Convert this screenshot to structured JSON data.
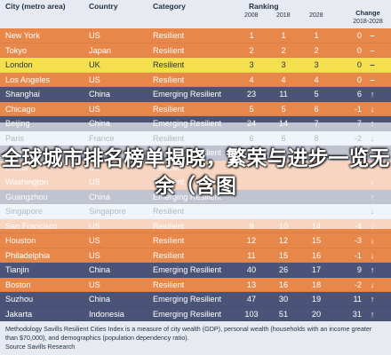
{
  "header": {
    "city": "City (metro area)",
    "country": "Country",
    "category": "Category",
    "ranking": "Ranking",
    "y2008": "2008",
    "y2018": "2018",
    "y2028": "2028",
    "change_line1": "Change",
    "change_line2": "2018-2028"
  },
  "rows": [
    {
      "city": "New York",
      "country": "US",
      "category": "Resilient",
      "r2008": "1",
      "r2018": "1",
      "r2028": "1",
      "change": "0",
      "arrow": "–",
      "style": "orange"
    },
    {
      "city": "Tokyo",
      "country": "Japan",
      "category": "Resilient",
      "r2008": "2",
      "r2018": "2",
      "r2028": "2",
      "change": "0",
      "arrow": "–",
      "style": "orange"
    },
    {
      "city": "London",
      "country": "UK",
      "category": "Resilient",
      "r2008": "3",
      "r2018": "3",
      "r2028": "3",
      "change": "0",
      "arrow": "–",
      "style": "yellow"
    },
    {
      "city": "Los Angeles",
      "country": "US",
      "category": "Resilient",
      "r2008": "4",
      "r2018": "4",
      "r2028": "4",
      "change": "0",
      "arrow": "–",
      "style": "orange"
    },
    {
      "city": "Shanghai",
      "country": "China",
      "category": "Emerging Resilient",
      "r2008": "23",
      "r2018": "11",
      "r2028": "5",
      "change": "6",
      "arrow": "↑",
      "style": "navy"
    },
    {
      "city": "Chicago",
      "country": "US",
      "category": "Resilient",
      "r2008": "5",
      "r2018": "5",
      "r2028": "6",
      "change": "-1",
      "arrow": "↓",
      "style": "orange"
    },
    {
      "city": "Beijing",
      "country": "China",
      "category": "Emerging Resilient",
      "r2008": "24",
      "r2018": "14",
      "r2028": "7",
      "change": "7",
      "arrow": "↑",
      "style": "navy"
    },
    {
      "city": "Paris",
      "country": "France",
      "category": "Resilient",
      "r2008": "6",
      "r2018": "6",
      "r2028": "8",
      "change": "-2",
      "arrow": "↓",
      "style": "pale"
    },
    {
      "city": "Shenzhen",
      "country": "China",
      "category": "Emerging Resilient",
      "r2008": "",
      "r2018": "",
      "r2028": "",
      "change": "",
      "arrow": "↑",
      "style": "navy"
    },
    {
      "city": "Dallas",
      "country": "US",
      "category": "Resilient",
      "r2008": "",
      "r2018": "",
      "r2028": "",
      "change": "",
      "arrow": "↓",
      "style": "orange"
    },
    {
      "city": "Washington",
      "country": "US",
      "category": "Resilient",
      "r2008": "",
      "r2018": "",
      "r2028": "",
      "change": "",
      "arrow": "↓",
      "style": "orange"
    },
    {
      "city": "Guangzhou",
      "country": "China",
      "category": "Emerging Resilient",
      "r2008": "",
      "r2018": "",
      "r2028": "",
      "change": "",
      "arrow": "↑",
      "style": "navy"
    },
    {
      "city": "Singapore",
      "country": "Singapore",
      "category": "Resilient",
      "r2008": "",
      "r2018": "",
      "r2028": "",
      "change": "",
      "arrow": "↓",
      "style": "pale"
    },
    {
      "city": "San Francisco",
      "country": "US",
      "category": "Resilient",
      "r2008": "9",
      "r2018": "10",
      "r2028": "14",
      "change": "-4",
      "arrow": "↓",
      "style": "orange"
    },
    {
      "city": "Houston",
      "country": "US",
      "category": "Resilient",
      "r2008": "12",
      "r2018": "12",
      "r2028": "15",
      "change": "-3",
      "arrow": "↓",
      "style": "orange"
    },
    {
      "city": "Philadelphia",
      "country": "US",
      "category": "Resilient",
      "r2008": "11",
      "r2018": "15",
      "r2028": "16",
      "change": "-1",
      "arrow": "↓",
      "style": "orange"
    },
    {
      "city": "Tianjin",
      "country": "China",
      "category": "Emerging Resilient",
      "r2008": "40",
      "r2018": "26",
      "r2028": "17",
      "change": "9",
      "arrow": "↑",
      "style": "navy"
    },
    {
      "city": "Boston",
      "country": "US",
      "category": "Resilient",
      "r2008": "13",
      "r2018": "16",
      "r2028": "18",
      "change": "-2",
      "arrow": "↓",
      "style": "orange"
    },
    {
      "city": "Suzhou",
      "country": "China",
      "category": "Emerging Resilient",
      "r2008": "47",
      "r2018": "30",
      "r2028": "19",
      "change": "11",
      "arrow": "↑",
      "style": "navy"
    },
    {
      "city": "Jakarta",
      "country": "Indonesia",
      "category": "Emerging Resilient",
      "r2008": "103",
      "r2018": "51",
      "r2028": "20",
      "change": "31",
      "arrow": "↑",
      "style": "navy"
    }
  ],
  "banner": "全球城市排名榜单揭晓，繁荣与进步一览无余（含图",
  "footer": {
    "methodology": "Methodology Savills Resilient Cities Index is a measure of city wealth (GDP), personal wealth (households with an income greater than $70,000), and demographics (population dependency ratio).",
    "source": "Source Savills Research"
  },
  "colors": {
    "orange": "#e8874a",
    "navy": "#4a5478",
    "yellow": "#f4e04f",
    "pale": "#d4e2f5",
    "header_bg": "#e7ebf1",
    "text_dark": "#233146"
  }
}
